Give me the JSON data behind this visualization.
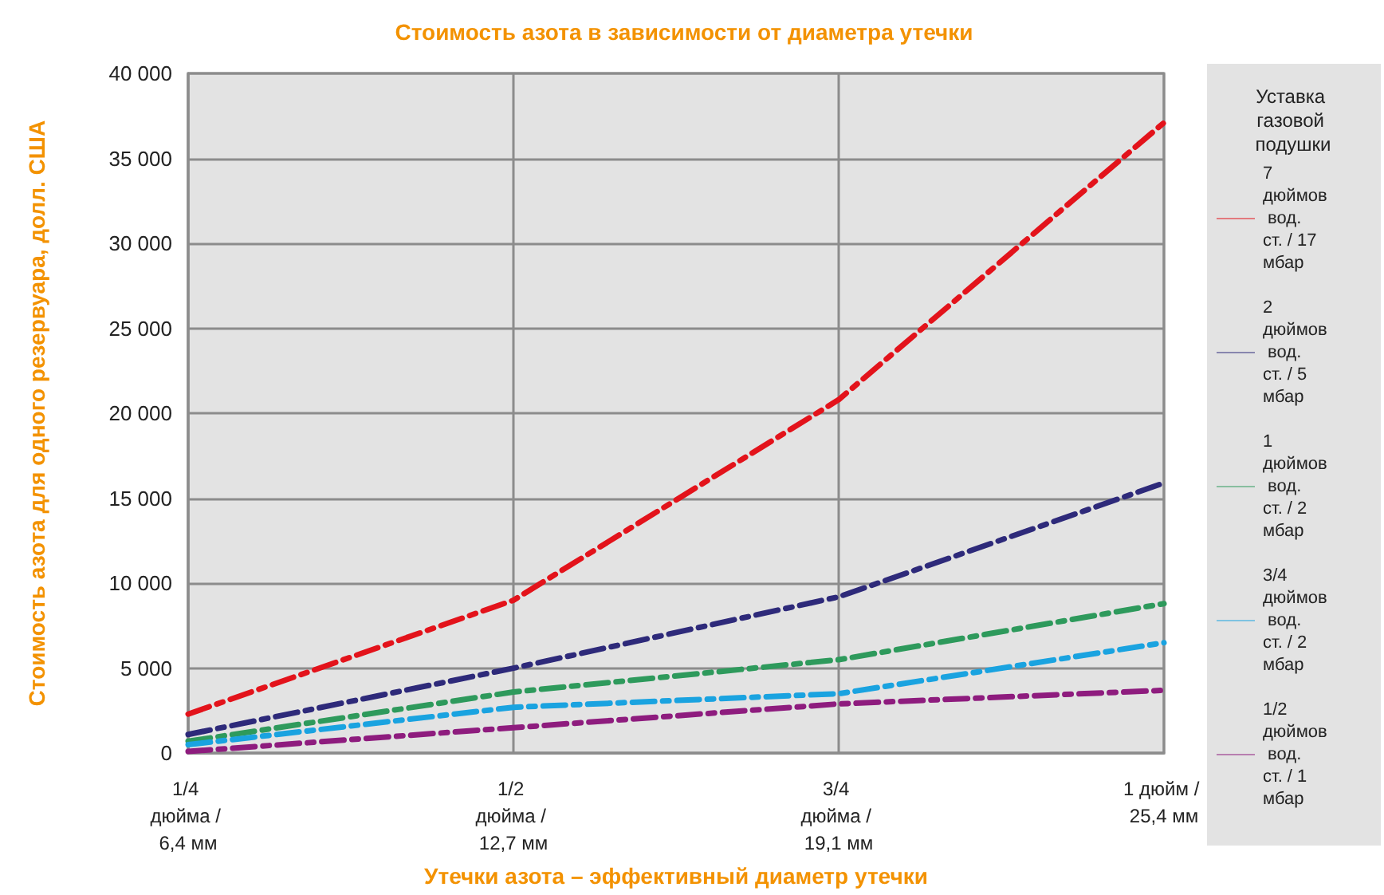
{
  "chart_data": {
    "type": "line",
    "title": "Стоимость азота в зависимости от диаметра утечки",
    "xlabel": "Утечки азота – эффективный диаметр утечки",
    "ylabel": "Стоимость азота для одного резервуара, долл. США",
    "legend_title": "Уставка газовой подушки",
    "categories": [
      "1/4 дюйма / 6,4 мм",
      "1/2 дюйма / 12,7 мм",
      "3/4 дюйма / 19,1 мм",
      "1 дюйм / 25,4 мм"
    ],
    "series": [
      {
        "name": "7 дюймов вод. ст. / 17 мбар",
        "color": "#e3131b",
        "line_style": "dashed",
        "values": [
          2300,
          9000,
          20800,
          37100
        ]
      },
      {
        "name": "2 дюймов вод. ст. / 5 мбар",
        "color": "#2e2a7a",
        "line_style": "dashed",
        "values": [
          1100,
          5000,
          9200,
          15900
        ]
      },
      {
        "name": "1 дюймов вод. ст. / 2 мбар",
        "color": "#2e9a5c",
        "line_style": "dashed",
        "values": [
          700,
          3600,
          5500,
          8800
        ]
      },
      {
        "name": "3/4 дюймов вод. ст. / 2 мбар",
        "color": "#1aa3e0",
        "line_style": "dashed",
        "values": [
          500,
          2700,
          3500,
          6500
        ]
      },
      {
        "name": "1/2 дюймов вод. ст. / 1 мбар",
        "color": "#8e1c7e",
        "line_style": "dashed",
        "values": [
          100,
          1500,
          2900,
          3700
        ]
      }
    ],
    "ylim": [
      0,
      40000
    ],
    "yticks": [
      {
        "value": 0,
        "label": "0"
      },
      {
        "value": 5000,
        "label": "5 000"
      },
      {
        "value": 10000,
        "label": "10 000"
      },
      {
        "value": 15000,
        "label": "15 000"
      },
      {
        "value": 20000,
        "label": "20 000"
      },
      {
        "value": 25000,
        "label": "25 000"
      },
      {
        "value": 30000,
        "label": "30 000"
      },
      {
        "value": 35000,
        "label": "35 000"
      },
      {
        "value": 40000,
        "label": "40 000"
      }
    ],
    "grid": true,
    "legend": "right",
    "marker": "none"
  }
}
